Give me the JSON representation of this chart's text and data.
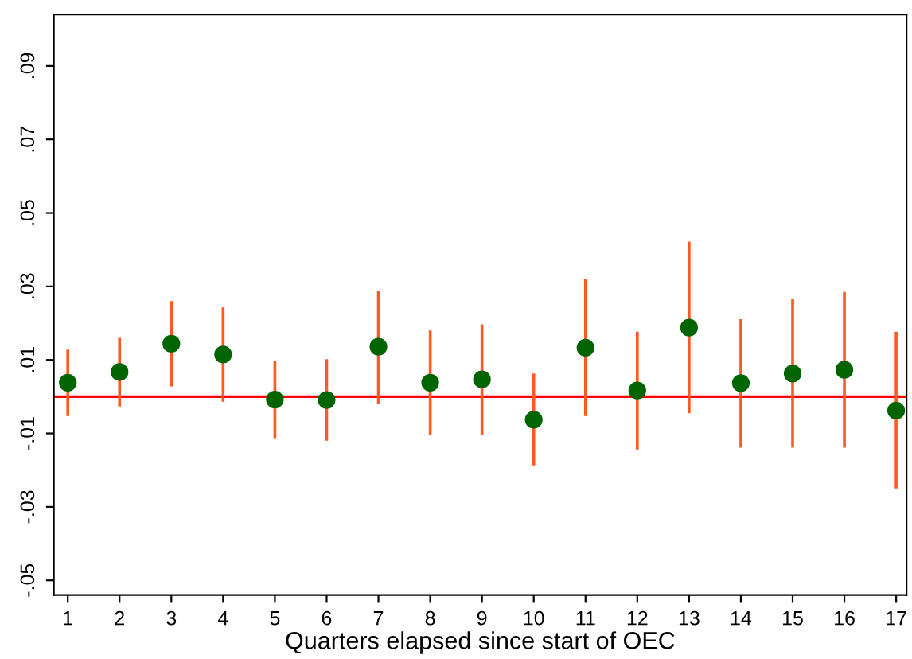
{
  "chart_data": {
    "type": "scatter",
    "xlabel": "Quarters elapsed since start of OEC",
    "x": [
      1,
      2,
      3,
      4,
      5,
      6,
      7,
      8,
      9,
      10,
      11,
      12,
      13,
      14,
      15,
      16,
      17
    ],
    "series": [
      {
        "color": "#006400",
        "values": [
          0.0038,
          0.0067,
          0.0144,
          0.0115,
          -0.0008,
          -0.0009,
          0.0136,
          0.0038,
          0.0047,
          -0.0063,
          0.0133,
          0.0017,
          0.0188,
          0.0037,
          0.0063,
          0.0073,
          -0.0038
        ],
        "errors": [
          [
            -0.0053,
            0.0128
          ],
          [
            -0.0027,
            0.016
          ],
          [
            0.0028,
            0.026
          ],
          [
            -0.0014,
            0.0243
          ],
          [
            -0.0113,
            0.0096
          ],
          [
            -0.012,
            0.0102
          ],
          [
            -0.0019,
            0.0289
          ],
          [
            -0.0103,
            0.018
          ],
          [
            -0.0103,
            0.0197
          ],
          [
            -0.0187,
            0.0063
          ],
          [
            -0.0053,
            0.032
          ],
          [
            -0.0144,
            0.0177
          ],
          [
            -0.0045,
            0.0422
          ],
          [
            -0.0139,
            0.0211
          ],
          [
            -0.0139,
            0.0265
          ],
          [
            -0.0139,
            0.0285
          ],
          [
            -0.025,
            0.0177
          ]
        ]
      }
    ],
    "marker": "circle",
    "grid": false,
    "legend": false,
    "xlim": [
      0.73,
      17.2
    ],
    "xticks": [
      1,
      2,
      3,
      4,
      5,
      6,
      7,
      8,
      9,
      10,
      11,
      12,
      13,
      14,
      15,
      16,
      17
    ],
    "ylim": [
      -0.054,
      0.104
    ],
    "yticks": [
      {
        "value": -0.05,
        "label": "-.05"
      },
      {
        "value": -0.03,
        "label": "-.03"
      },
      {
        "value": -0.01,
        "label": "-.01"
      },
      {
        "value": 0.01,
        "label": ".01"
      },
      {
        "value": 0.03,
        "label": ".03"
      },
      {
        "value": 0.05,
        "label": ".05"
      },
      {
        "value": 0.07,
        "label": ".07"
      },
      {
        "value": 0.09,
        "label": ".09"
      }
    ],
    "ref_lines": [
      {
        "axis": "y",
        "value": 0,
        "color": "#ff0000"
      }
    ]
  }
}
